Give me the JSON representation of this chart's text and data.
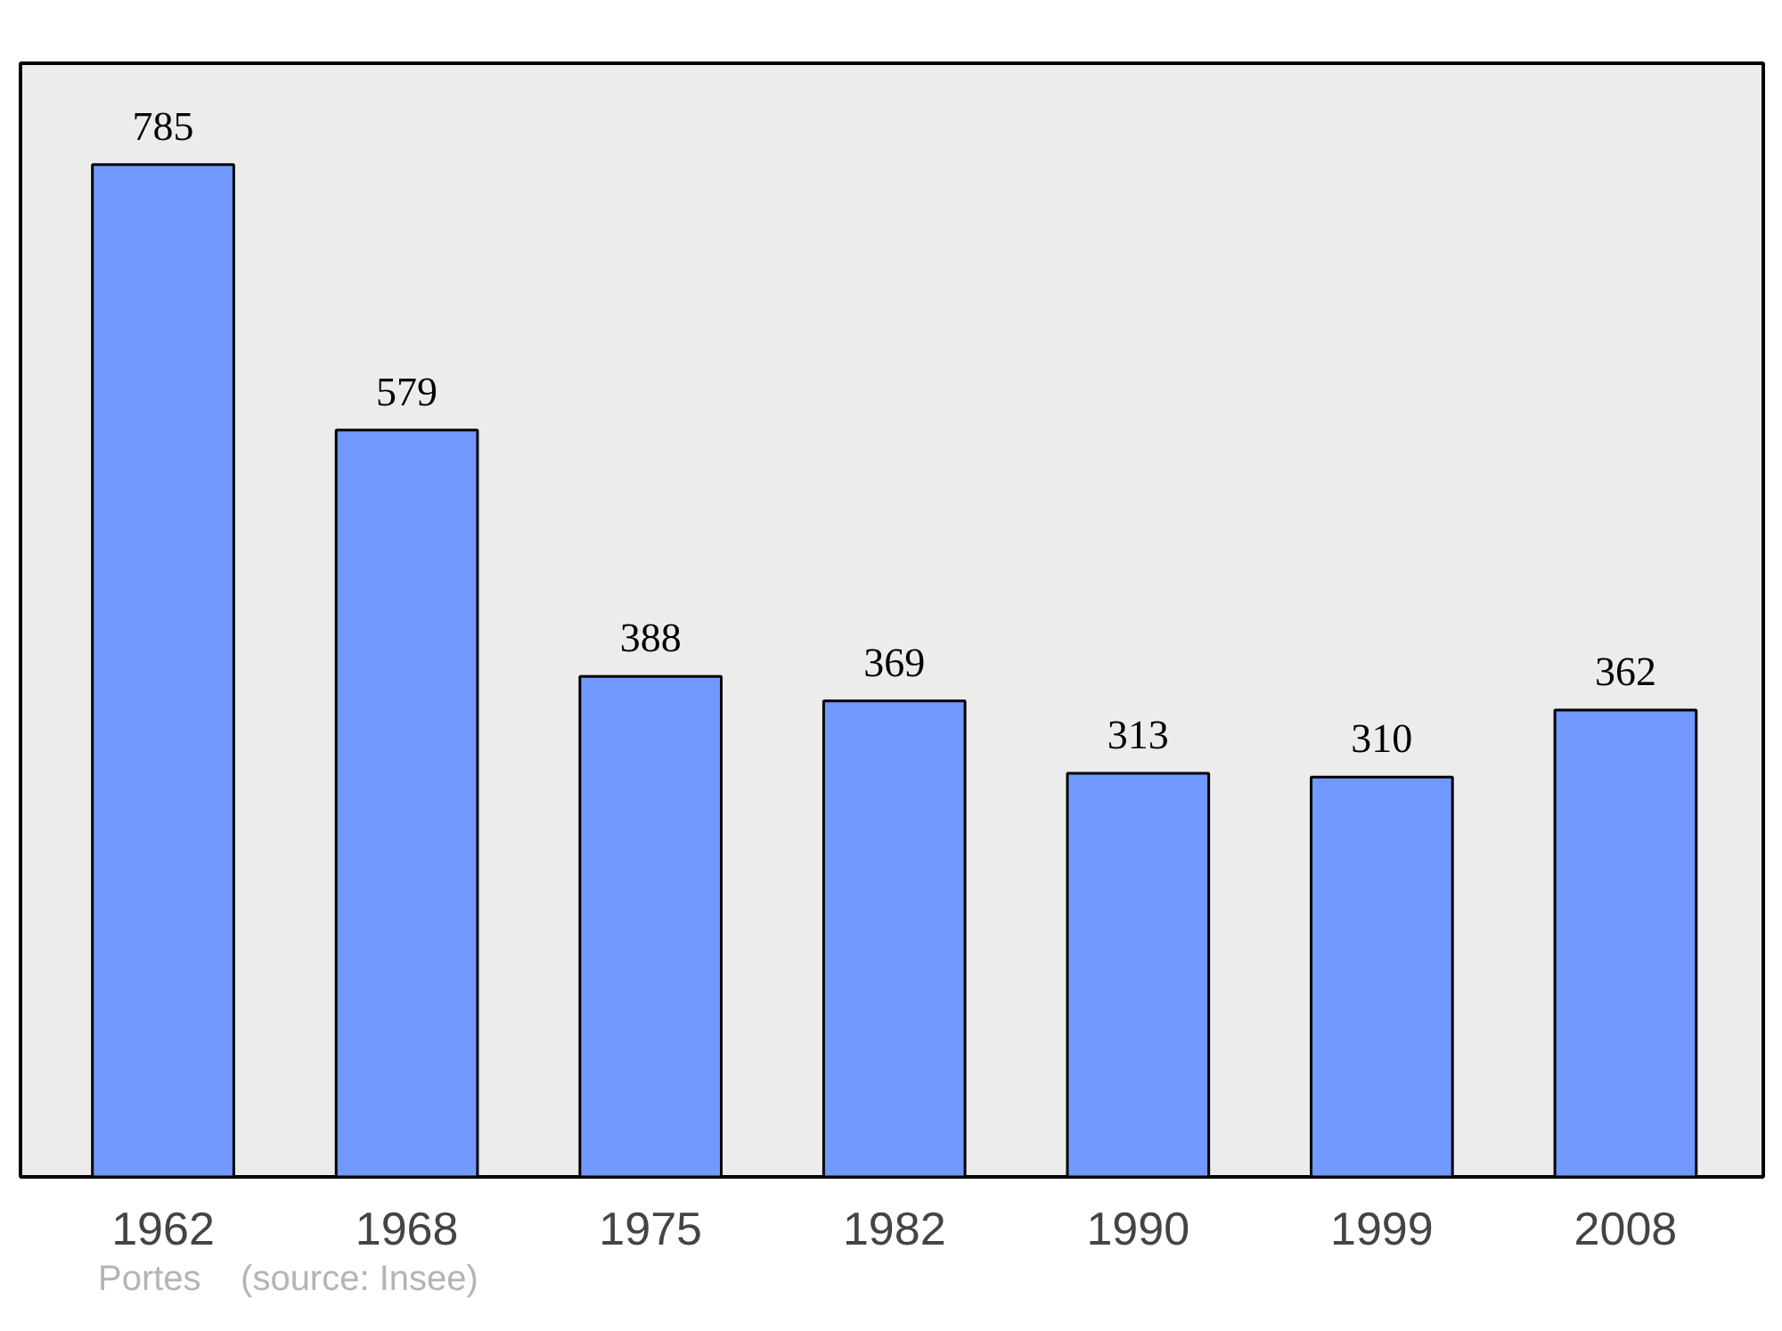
{
  "chart_data": {
    "type": "bar",
    "categories": [
      "1962",
      "1968",
      "1975",
      "1982",
      "1990",
      "1999",
      "2008"
    ],
    "values": [
      785,
      579,
      388,
      369,
      313,
      310,
      362
    ],
    "color": "#7299ff",
    "data_labels": true,
    "annotations": [
      "Portes",
      "(source: Insee)"
    ]
  }
}
